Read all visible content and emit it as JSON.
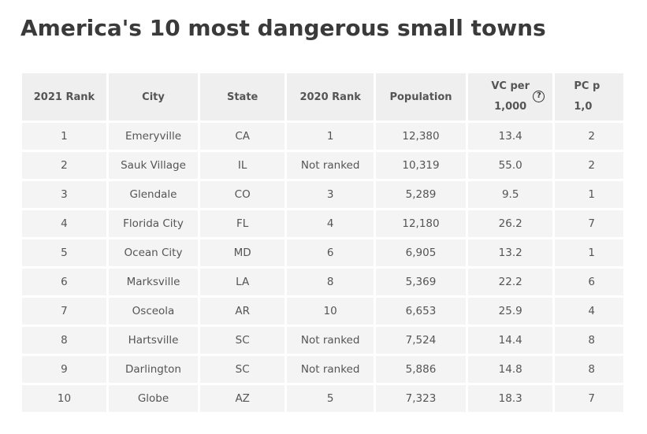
{
  "title": "America's 10 most dangerous small towns",
  "table": {
    "headers": {
      "rank_2021": "2021 Rank",
      "city": "City",
      "state": "State",
      "rank_2020": "2020 Rank",
      "population": "Population",
      "vc_per_line1": "VC per",
      "vc_per_line2": "1,000",
      "help_icon": "?",
      "pc_line1": "PC p",
      "pc_line2": "1,0"
    },
    "rows": [
      {
        "rank_2021": "1",
        "city": "Emeryville",
        "state": "CA",
        "rank_2020": "1",
        "population": "12,380",
        "vc_per_1000": "13.4",
        "pc_partial": "2"
      },
      {
        "rank_2021": "2",
        "city": "Sauk Village",
        "state": "IL",
        "rank_2020": "Not ranked",
        "population": "10,319",
        "vc_per_1000": "55.0",
        "pc_partial": "2"
      },
      {
        "rank_2021": "3",
        "city": "Glendale",
        "state": "CO",
        "rank_2020": "3",
        "population": "5,289",
        "vc_per_1000": "9.5",
        "pc_partial": "1"
      },
      {
        "rank_2021": "4",
        "city": "Florida City",
        "state": "FL",
        "rank_2020": "4",
        "population": "12,180",
        "vc_per_1000": "26.2",
        "pc_partial": "7"
      },
      {
        "rank_2021": "5",
        "city": "Ocean City",
        "state": "MD",
        "rank_2020": "6",
        "population": "6,905",
        "vc_per_1000": "13.2",
        "pc_partial": "1"
      },
      {
        "rank_2021": "6",
        "city": "Marksville",
        "state": "LA",
        "rank_2020": "8",
        "population": "5,369",
        "vc_per_1000": "22.2",
        "pc_partial": "6"
      },
      {
        "rank_2021": "7",
        "city": "Osceola",
        "state": "AR",
        "rank_2020": "10",
        "population": "6,653",
        "vc_per_1000": "25.9",
        "pc_partial": "4"
      },
      {
        "rank_2021": "8",
        "city": "Hartsville",
        "state": "SC",
        "rank_2020": "Not ranked",
        "population": "7,524",
        "vc_per_1000": "14.4",
        "pc_partial": "8"
      },
      {
        "rank_2021": "9",
        "city": "Darlington",
        "state": "SC",
        "rank_2020": "Not ranked",
        "population": "5,886",
        "vc_per_1000": "14.8",
        "pc_partial": "8"
      },
      {
        "rank_2021": "10",
        "city": "Globe",
        "state": "AZ",
        "rank_2020": "5",
        "population": "7,323",
        "vc_per_1000": "18.3",
        "pc_partial": "7"
      }
    ]
  }
}
